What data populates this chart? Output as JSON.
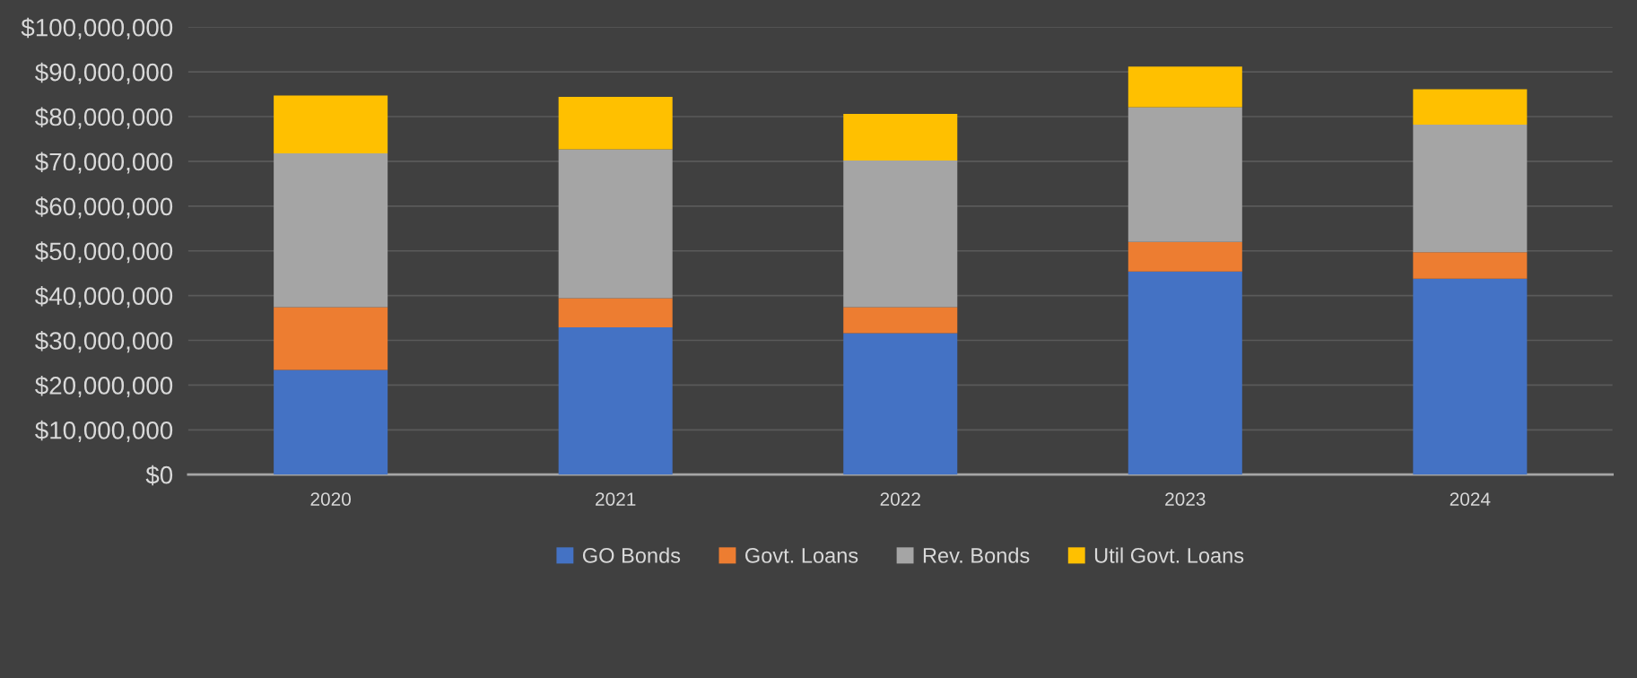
{
  "chart_data": {
    "type": "bar",
    "stacked": true,
    "categories": [
      "2020",
      "2021",
      "2022",
      "2023",
      "2024"
    ],
    "series": [
      {
        "name": "GO Bonds",
        "color": "#4472c4",
        "values": [
          23400000,
          32900000,
          31600000,
          45400000,
          43800000
        ]
      },
      {
        "name": "Govt. Loans",
        "color": "#ed7d31",
        "values": [
          14000000,
          6500000,
          5800000,
          6600000,
          5900000
        ]
      },
      {
        "name": "Rev. Bonds",
        "color": "#a5a5a5",
        "values": [
          34400000,
          33300000,
          32800000,
          30100000,
          28500000
        ]
      },
      {
        "name": "Util Govt. Loans",
        "color": "#ffc000",
        "values": [
          12900000,
          11700000,
          10400000,
          9100000,
          7900000
        ]
      }
    ],
    "ylim": [
      0,
      100000000
    ],
    "yticks": [
      {
        "value": 0,
        "label": "$0"
      },
      {
        "value": 10000000,
        "label": "$10,000,000"
      },
      {
        "value": 20000000,
        "label": "$20,000,000"
      },
      {
        "value": 30000000,
        "label": "$30,000,000"
      },
      {
        "value": 40000000,
        "label": "$40,000,000"
      },
      {
        "value": 50000000,
        "label": "$50,000,000"
      },
      {
        "value": 60000000,
        "label": "$60,000,000"
      },
      {
        "value": 70000000,
        "label": "$70,000,000"
      },
      {
        "value": 80000000,
        "label": "$80,000,000"
      },
      {
        "value": 90000000,
        "label": "$90,000,000"
      },
      {
        "value": 100000000,
        "label": "$100,000,000"
      }
    ],
    "grid": "y",
    "legend": "bottom"
  }
}
